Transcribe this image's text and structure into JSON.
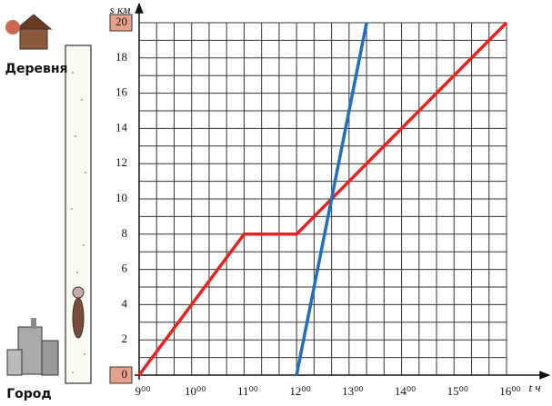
{
  "chart_data": {
    "type": "line",
    "x_label": "t ч",
    "y_label": "s км",
    "annotations": [
      "Деревня",
      "Город"
    ],
    "series": [
      {
        "color": "#e8231f",
        "x": [
          9,
          11,
          12,
          16
        ],
        "values": [
          0,
          8,
          8,
          20
        ]
      },
      {
        "color": "#1f6fc0",
        "x": [
          12,
          13.333
        ],
        "values": [
          0,
          20
        ]
      }
    ],
    "xlim": [
      9,
      16
    ],
    "ylim": [
      0,
      20
    ],
    "xticks": [
      {
        "value": 9,
        "label": "9⁰⁰"
      },
      {
        "value": 10,
        "label": "10⁰⁰"
      },
      {
        "value": 11,
        "label": "11⁰⁰"
      },
      {
        "value": 12,
        "label": "12⁰⁰"
      },
      {
        "value": 13,
        "label": "13⁰⁰"
      },
      {
        "value": 14,
        "label": "14⁰⁰"
      },
      {
        "value": 15,
        "label": "15⁰⁰"
      },
      {
        "value": 16,
        "label": "16⁰⁰"
      }
    ],
    "yticks": [
      0,
      2,
      4,
      6,
      8,
      10,
      12,
      14,
      16,
      18,
      20
    ],
    "grid": true
  }
}
